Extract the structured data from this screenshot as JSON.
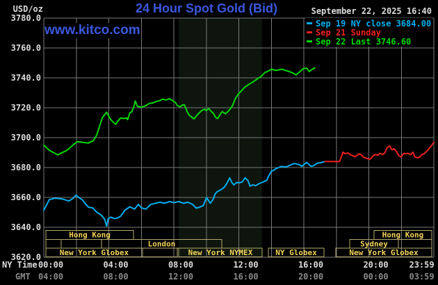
{
  "header": {
    "unit": "USD/oz",
    "title": "24 Hour Spot Gold (Bid)",
    "datetime": "September 22, 2025 16:40",
    "watermark": "www.kitco.com"
  },
  "legend": {
    "items": [
      {
        "label": "Sep 19 NY close 3684.00",
        "color": "#00aeef"
      },
      {
        "label": "Sep 21 Sunday",
        "color": "#ee2020"
      },
      {
        "label": "Sep 22 Last 3746.60",
        "color": "#00d800"
      }
    ]
  },
  "colors": {
    "background": "#000000",
    "grid": "#7a7a7a",
    "band": "#0d150d",
    "title": "#3b58dd",
    "watermark": "#3b58dd",
    "tick_text": "#dcdcdc",
    "gmt_text": "#8a8a8a",
    "session_border": "#b3aa6b",
    "session_text": "#f0d25a"
  },
  "chart_data": {
    "type": "line",
    "title": "24 Hour Spot Gold (Bid)",
    "ylabel": "USD/oz",
    "xlim": [
      0,
      24
    ],
    "ylim": [
      3620,
      3780
    ],
    "grid": true,
    "prev_ny_close": 3684.0,
    "last_price": 3746.6,
    "y_ticks": [
      3780,
      3760,
      3740,
      3720,
      3700,
      3680,
      3660,
      3640,
      3620
    ],
    "xaxis": {
      "ny_name": "NY Time",
      "gmt_name": "GMT",
      "hours": [
        0,
        4,
        8,
        12,
        16,
        20,
        23.98
      ],
      "ny_labels": [
        "00:00",
        "04:00",
        "08:00",
        "12:00",
        "16:00",
        "20:00",
        "23:59"
      ],
      "gmt_labels": [
        "04:00",
        "08:00",
        "12:00",
        "16:00",
        "20:00",
        "00:00",
        "03:59"
      ],
      "label_dx": [
        10,
        10,
        10,
        10,
        10,
        10,
        -17
      ]
    },
    "highlight_band": {
      "from_hour": 8.3,
      "to_hour": 13.43
    },
    "series": [
      {
        "id": "sep19",
        "name": "Sep 19 NY close 3684.00",
        "color": "#00aeef",
        "points": [
          [
            0,
            3651.5
          ],
          [
            0.17,
            3655
          ],
          [
            0.34,
            3658.5
          ],
          [
            0.69,
            3659.5
          ],
          [
            1.12,
            3659
          ],
          [
            1.55,
            3657.6
          ],
          [
            1.81,
            3659.5
          ],
          [
            1.98,
            3661.5
          ],
          [
            2.15,
            3660
          ],
          [
            2.37,
            3658.4
          ],
          [
            2.58,
            3655.5
          ],
          [
            2.75,
            3653.5
          ],
          [
            3.01,
            3653
          ],
          [
            3.27,
            3650
          ],
          [
            3.53,
            3648.3
          ],
          [
            3.74,
            3645.5
          ],
          [
            3.87,
            3640.8
          ],
          [
            3.96,
            3645.8
          ],
          [
            4.13,
            3646.8
          ],
          [
            4.34,
            3645.8
          ],
          [
            4.56,
            3646.3
          ],
          [
            4.73,
            3647.5
          ],
          [
            4.99,
            3651.4
          ],
          [
            5.29,
            3653.7
          ],
          [
            5.59,
            3652.2
          ],
          [
            5.81,
            3655.3
          ],
          [
            6.02,
            3653
          ],
          [
            6.28,
            3652.2
          ],
          [
            6.58,
            3655.3
          ],
          [
            6.88,
            3656.1
          ],
          [
            7.14,
            3656.8
          ],
          [
            7.44,
            3656.1
          ],
          [
            7.74,
            3657.2
          ],
          [
            8.0,
            3656.5
          ],
          [
            8.3,
            3657.2
          ],
          [
            8.6,
            3656.1
          ],
          [
            8.86,
            3656.8
          ],
          [
            9.16,
            3655.3
          ],
          [
            9.38,
            3652.8
          ],
          [
            9.59,
            3653.5
          ],
          [
            9.81,
            3654.5
          ],
          [
            10.02,
            3659.9
          ],
          [
            10.24,
            3656.1
          ],
          [
            10.41,
            3658.5
          ],
          [
            10.54,
            3662.3
          ],
          [
            10.67,
            3663.8
          ],
          [
            10.84,
            3664.8
          ],
          [
            11.01,
            3666
          ],
          [
            11.14,
            3667.3
          ],
          [
            11.27,
            3669.5
          ],
          [
            11.44,
            3673.1
          ],
          [
            11.57,
            3670
          ],
          [
            11.7,
            3668.4
          ],
          [
            11.87,
            3670
          ],
          [
            12.04,
            3669.7
          ],
          [
            12.22,
            3670.4
          ],
          [
            12.39,
            3673.1
          ],
          [
            12.56,
            3671.3
          ],
          [
            12.69,
            3667.6
          ],
          [
            12.86,
            3668.4
          ],
          [
            13.03,
            3667.8
          ],
          [
            13.25,
            3669.2
          ],
          [
            13.42,
            3670
          ],
          [
            13.59,
            3670.8
          ],
          [
            13.72,
            3671.5
          ],
          [
            13.85,
            3674.6
          ],
          [
            14.02,
            3677.7
          ],
          [
            14.15,
            3678.2
          ],
          [
            14.28,
            3679.2
          ],
          [
            14.45,
            3680
          ],
          [
            14.62,
            3680.8
          ],
          [
            14.8,
            3680.4
          ],
          [
            14.97,
            3680.6
          ],
          [
            15.14,
            3681.5
          ],
          [
            15.31,
            3682.3
          ],
          [
            15.44,
            3682.7
          ],
          [
            15.57,
            3682.3
          ],
          [
            15.74,
            3681.9
          ],
          [
            15.87,
            3680.8
          ],
          [
            16.0,
            3681.9
          ],
          [
            16.17,
            3683.4
          ],
          [
            16.3,
            3682.3
          ],
          [
            16.43,
            3680.9
          ],
          [
            16.6,
            3681.2
          ],
          [
            16.73,
            3682.3
          ],
          [
            16.86,
            3683
          ],
          [
            17.03,
            3683.2
          ],
          [
            17.2,
            3683.7
          ],
          [
            17.29,
            3684
          ]
        ]
      },
      {
        "id": "sep21",
        "name": "Sep 21 Sunday",
        "color": "#ee2020",
        "points": [
          [
            17.29,
            3684
          ],
          [
            18.19,
            3684
          ],
          [
            18.28,
            3686.4
          ],
          [
            18.41,
            3690.3
          ],
          [
            18.54,
            3689.2
          ],
          [
            18.71,
            3689.8
          ],
          [
            18.84,
            3688.7
          ],
          [
            18.97,
            3688.2
          ],
          [
            19.14,
            3687.1
          ],
          [
            19.27,
            3688.2
          ],
          [
            19.4,
            3689.2
          ],
          [
            19.57,
            3688.2
          ],
          [
            19.7,
            3686.7
          ],
          [
            19.83,
            3686.4
          ],
          [
            20.0,
            3685.6
          ],
          [
            20.13,
            3685.9
          ],
          [
            20.26,
            3687.9
          ],
          [
            20.43,
            3688.7
          ],
          [
            20.56,
            3688.2
          ],
          [
            20.69,
            3689.5
          ],
          [
            20.86,
            3688.7
          ],
          [
            20.99,
            3689.8
          ],
          [
            21.12,
            3693.4
          ],
          [
            21.29,
            3694.4
          ],
          [
            21.42,
            3691.8
          ],
          [
            21.55,
            3692.6
          ],
          [
            21.72,
            3690.3
          ],
          [
            21.85,
            3687.9
          ],
          [
            21.98,
            3687.1
          ],
          [
            22.15,
            3689.5
          ],
          [
            22.28,
            3689.2
          ],
          [
            22.41,
            3689.5
          ],
          [
            22.58,
            3688.7
          ],
          [
            22.71,
            3690.3
          ],
          [
            22.84,
            3687.1
          ],
          [
            23.01,
            3686.4
          ],
          [
            23.14,
            3687.1
          ],
          [
            23.27,
            3688.7
          ],
          [
            23.44,
            3689.5
          ],
          [
            23.57,
            3691.1
          ],
          [
            23.7,
            3692.6
          ],
          [
            23.87,
            3694.9
          ],
          [
            24.0,
            3697
          ]
        ]
      },
      {
        "id": "sep22",
        "name": "Sep 22 Last 3746.60",
        "color": "#00d800",
        "points": [
          [
            0,
            3695
          ],
          [
            0.34,
            3691.5
          ],
          [
            0.86,
            3688.5
          ],
          [
            1.42,
            3691.5
          ],
          [
            1.85,
            3695.5
          ],
          [
            2.06,
            3697.3
          ],
          [
            2.41,
            3696.8
          ],
          [
            2.75,
            3696.4
          ],
          [
            3.05,
            3698
          ],
          [
            3.27,
            3702
          ],
          [
            3.44,
            3708
          ],
          [
            3.61,
            3713.5
          ],
          [
            3.86,
            3717
          ],
          [
            4.0,
            3714.3
          ],
          [
            4.13,
            3712
          ],
          [
            4.3,
            3710
          ],
          [
            4.43,
            3708.9
          ],
          [
            4.56,
            3711.2
          ],
          [
            4.73,
            3713.2
          ],
          [
            4.9,
            3712.8
          ],
          [
            5.08,
            3713.2
          ],
          [
            5.16,
            3712
          ],
          [
            5.29,
            3716.6
          ],
          [
            5.42,
            3717.3
          ],
          [
            5.55,
            3721
          ],
          [
            5.63,
            3724.5
          ],
          [
            5.76,
            3721
          ],
          [
            5.94,
            3720.5
          ],
          [
            6.06,
            3720.6
          ],
          [
            6.28,
            3721.4
          ],
          [
            6.49,
            3722.9
          ],
          [
            6.71,
            3723.2
          ],
          [
            6.92,
            3724.2
          ],
          [
            7.14,
            3724.8
          ],
          [
            7.31,
            3725.7
          ],
          [
            7.53,
            3725.2
          ],
          [
            7.74,
            3726
          ],
          [
            7.96,
            3724.4
          ],
          [
            8.09,
            3723.7
          ],
          [
            8.22,
            3721.4
          ],
          [
            8.39,
            3720.6
          ],
          [
            8.52,
            3721.8
          ],
          [
            8.65,
            3722
          ],
          [
            8.82,
            3717.4
          ],
          [
            8.95,
            3715
          ],
          [
            9.08,
            3713.9
          ],
          [
            9.25,
            3712.5
          ],
          [
            9.38,
            3714.4
          ],
          [
            9.51,
            3716
          ],
          [
            9.72,
            3718.2
          ],
          [
            9.89,
            3719
          ],
          [
            10.02,
            3718.2
          ],
          [
            10.15,
            3719.4
          ],
          [
            10.32,
            3717.4
          ],
          [
            10.45,
            3716
          ],
          [
            10.58,
            3713.5
          ],
          [
            10.7,
            3712.8
          ],
          [
            10.85,
            3715.5
          ],
          [
            10.97,
            3717.4
          ],
          [
            11.18,
            3716
          ],
          [
            11.4,
            3718.2
          ],
          [
            11.61,
            3721.4
          ],
          [
            11.78,
            3726
          ],
          [
            11.96,
            3729
          ],
          [
            12.17,
            3731.5
          ],
          [
            12.39,
            3734
          ],
          [
            12.6,
            3735.5
          ],
          [
            12.9,
            3737.5
          ],
          [
            13.16,
            3739.5
          ],
          [
            13.38,
            3741
          ],
          [
            13.59,
            3743.5
          ],
          [
            13.81,
            3744.5
          ],
          [
            14.02,
            3745.8
          ],
          [
            14.24,
            3745
          ],
          [
            14.45,
            3745.3
          ],
          [
            14.67,
            3745.8
          ],
          [
            14.88,
            3744.9
          ],
          [
            15.05,
            3744.5
          ],
          [
            15.31,
            3743.3
          ],
          [
            15.53,
            3742
          ],
          [
            15.74,
            3744
          ],
          [
            15.96,
            3746.2
          ],
          [
            16.17,
            3746.5
          ],
          [
            16.34,
            3744.2
          ],
          [
            16.52,
            3745.8
          ],
          [
            16.67,
            3746.6
          ]
        ]
      }
    ],
    "sessions": {
      "rows": [
        {
          "boxes": [
            {
              "label": "Hong Kong",
              "from": 0.13,
              "to": 5.52
            },
            {
              "label": "Hong Kong",
              "from": 20.32,
              "to": 23.87
            }
          ]
        },
        {
          "boxes": [
            {
              "label": "",
              "from": 0.13,
              "to": 1.07
            },
            {
              "label": "",
              "from": 1.07,
              "to": 3.55
            },
            {
              "label": "London",
              "from": 3.55,
              "to": 10.95
            },
            {
              "label": "Sydney",
              "from": 18.82,
              "to": 21.82
            },
            {
              "label": "",
              "from": 21.82,
              "to": 23.87
            }
          ]
        },
        {
          "boxes": [
            {
              "label": "New York Globex",
              "from": 0.13,
              "to": 6.07
            },
            {
              "label": "",
              "from": 6.07,
              "to": 8.21
            },
            {
              "label": "New York NYMEX",
              "from": 8.3,
              "to": 13.43
            },
            {
              "label": "NY Globex",
              "from": 13.82,
              "to": 17.24
            },
            {
              "label": "New York Globex",
              "from": 17.97,
              "to": 23.87
            }
          ]
        }
      ]
    }
  }
}
